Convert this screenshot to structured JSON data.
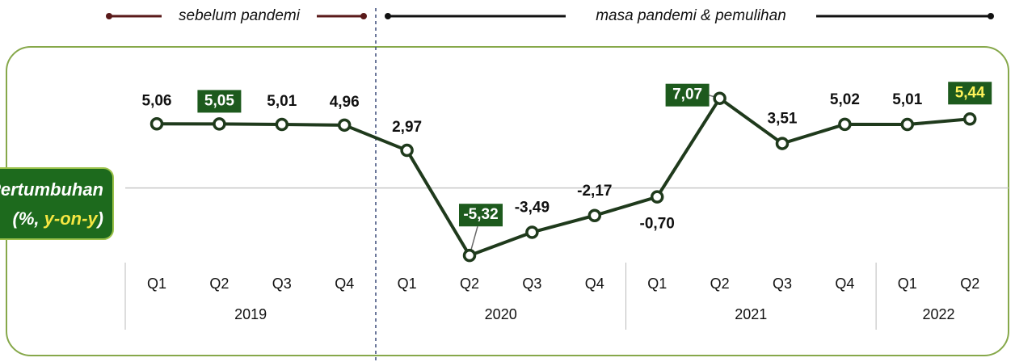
{
  "chart_data": {
    "type": "line",
    "periods": [
      "sebelum pandemi",
      "masa pandemi & pemulihan"
    ],
    "y_label": {
      "line1": "Pertumbuhan",
      "line2_parts": [
        "(%, ",
        "y-on-y",
        ")"
      ]
    },
    "categories": [
      "Q1",
      "Q2",
      "Q3",
      "Q4",
      "Q1",
      "Q2",
      "Q3",
      "Q4",
      "Q1",
      "Q2",
      "Q3",
      "Q4",
      "Q1",
      "Q2"
    ],
    "groups": [
      "2019",
      "2019",
      "2019",
      "2019",
      "2020",
      "2020",
      "2020",
      "2020",
      "2021",
      "2021",
      "2021",
      "2021",
      "2022",
      "2022"
    ],
    "series": [
      {
        "name": "Pertumbuhan",
        "color": "#1f3a1c",
        "values": [
          5.06,
          5.05,
          5.01,
          4.96,
          2.97,
          -5.32,
          -3.49,
          -2.17,
          -0.7,
          7.07,
          3.51,
          5.02,
          5.01,
          5.44
        ],
        "value_labels": [
          "5,06",
          "5,05",
          "5,01",
          "4,96",
          "2,97",
          "-5,32",
          "-3,49",
          "-2,17",
          "-0,70",
          "7,07",
          "3,51",
          "5,02",
          "5,01",
          "5,44"
        ]
      }
    ],
    "label_boxes": [
      {
        "index": 1,
        "text_color": "#ffffff"
      },
      {
        "index": 5,
        "text_color": "#ffffff"
      },
      {
        "index": 9,
        "text_color": "#ffffff"
      },
      {
        "index": 13,
        "text_color": "#fff35a"
      }
    ],
    "box_color": "#1d5a1d",
    "ylim": [
      -6.2,
      11
    ],
    "yticks": [
      0
    ],
    "grid": true
  }
}
